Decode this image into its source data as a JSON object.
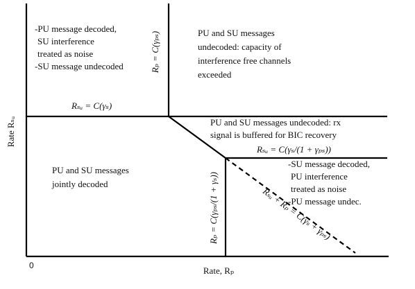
{
  "regions": [
    {
      "lines": [
        "-PU message decoded,",
        "SU interference",
        "treated as noise",
        "-SU message undecoded"
      ]
    },
    {
      "lines": [
        "PU and SU messages",
        "undecoded: capacity of",
        "interference free channels",
        "exceeded"
      ]
    },
    {
      "lines": [
        "PU and SU messages undecoded: rx",
        "signal is buffered for BIC recovery"
      ]
    },
    {
      "lines": [
        "PU and SU messages",
        "jointly decoded"
      ]
    },
    {
      "lines": [
        "-SU message decoded,",
        "PU interference",
        "treated as noise",
        "-PU message undec."
      ]
    }
  ],
  "boundary_labels": [
    "Rₛᵤ = C(γₛ)",
    "Rₚ = C(γₚₛ)",
    "Rₛᵤ = C(γₛ/(1 + γₚₛ))",
    "Rₚ = C(γₚₛ/(1 + γₛ))",
    "Rₛᵤ + Rₚ = C(γₛ + γₚₛ)"
  ],
  "axes": {
    "origin": "0",
    "x_label": "Rate, Rₚ",
    "y_label": "Rate Rₛᵤ"
  }
}
